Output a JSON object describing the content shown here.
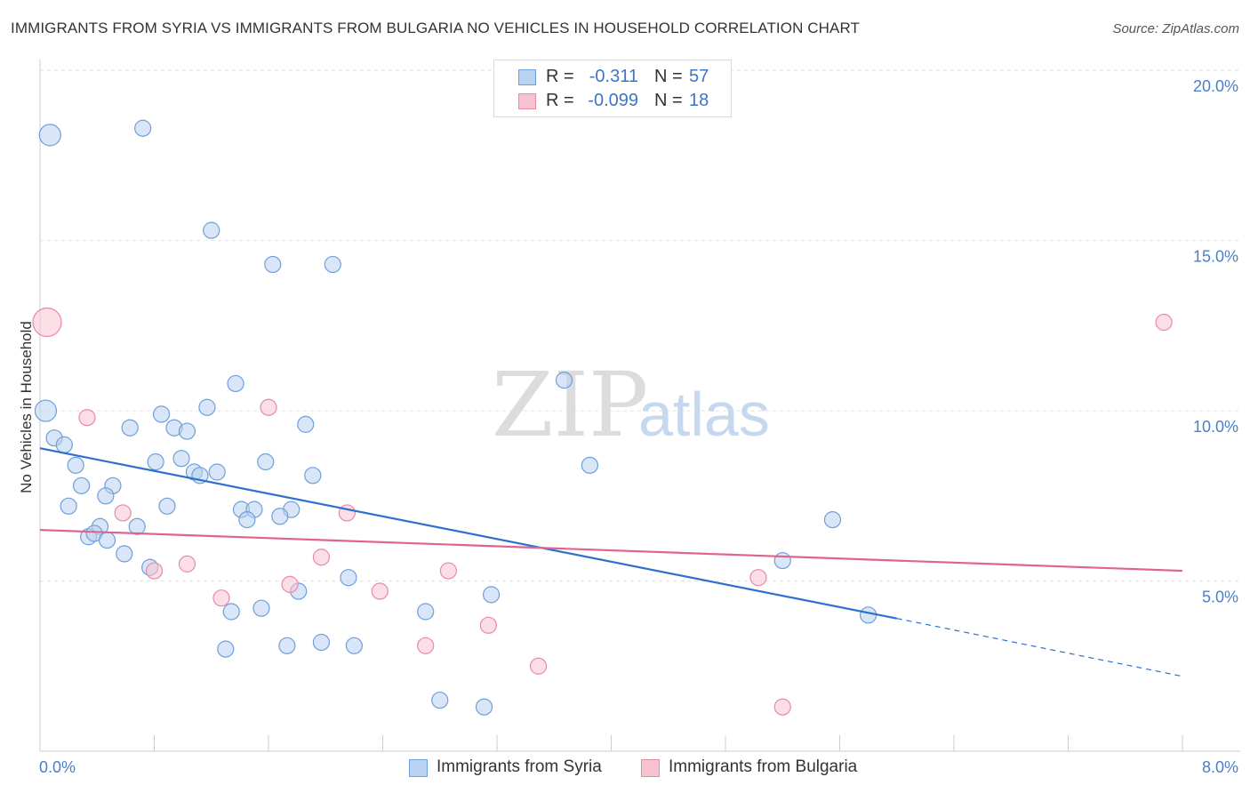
{
  "title": "IMMIGRANTS FROM SYRIA VS IMMIGRANTS FROM BULGARIA NO VEHICLES IN HOUSEHOLD CORRELATION CHART",
  "source": "Source: ZipAtlas.com",
  "watermark": {
    "zip": "ZIP",
    "atlas": "atlas"
  },
  "legend": {
    "syria": {
      "r_label": "R =",
      "r_value": "-0.311",
      "n_label": "N =",
      "n_value": "57"
    },
    "bulgaria": {
      "r_label": "R =",
      "r_value": "-0.099",
      "n_label": "N =",
      "n_value": "18"
    }
  },
  "colors": {
    "syria_fill": "#b8d2f1",
    "syria_stroke": "#6e9fd9",
    "syria_line": "#2f6fcf",
    "bulgaria_fill": "#f7c3d1",
    "bulgaria_stroke": "#e88aa6",
    "bulgaria_line": "#e0648e",
    "grid": "#e2e2e2",
    "tick_text": "#4a7fc9"
  },
  "chart_data": {
    "type": "scatter",
    "title": "IMMIGRANTS FROM SYRIA VS IMMIGRANTS FROM BULGARIA NO VEHICLES IN HOUSEHOLD CORRELATION CHART",
    "xlabel": "",
    "ylabel": "No Vehicles in Household",
    "xlim": [
      0,
      8
    ],
    "ylim": [
      0,
      20.5
    ],
    "x_tick_labels": [
      "0.0%",
      "8.0%"
    ],
    "y_ticks": [
      5,
      10,
      15,
      20
    ],
    "y_tick_labels": [
      "5.0%",
      "10.0%",
      "15.0%",
      "20.0%"
    ],
    "grid": true,
    "legend_position": "bottom",
    "series": [
      {
        "name": "Immigrants from Syria",
        "color": "#b8d2f1",
        "trend": {
          "x0": 0,
          "y0": 8.9,
          "x1": 6.0,
          "y1": 3.9,
          "dash_to_x": 8.0,
          "dash_to_y": 2.2
        },
        "points": [
          {
            "x": 0.07,
            "y": 18.1,
            "s": 12
          },
          {
            "x": 0.72,
            "y": 18.3,
            "s": 9
          },
          {
            "x": 1.2,
            "y": 15.3,
            "s": 9
          },
          {
            "x": 1.63,
            "y": 14.3,
            "s": 9
          },
          {
            "x": 2.05,
            "y": 14.3,
            "s": 9
          },
          {
            "x": 0.04,
            "y": 10.0,
            "s": 12
          },
          {
            "x": 3.67,
            "y": 10.9,
            "s": 9
          },
          {
            "x": 1.37,
            "y": 10.8,
            "s": 9
          },
          {
            "x": 1.17,
            "y": 10.1,
            "s": 9
          },
          {
            "x": 0.1,
            "y": 9.2,
            "s": 9
          },
          {
            "x": 0.17,
            "y": 9.0,
            "s": 9
          },
          {
            "x": 0.85,
            "y": 9.9,
            "s": 9
          },
          {
            "x": 0.94,
            "y": 9.5,
            "s": 9
          },
          {
            "x": 1.03,
            "y": 9.4,
            "s": 9
          },
          {
            "x": 0.63,
            "y": 9.5,
            "s": 9
          },
          {
            "x": 1.86,
            "y": 9.6,
            "s": 9
          },
          {
            "x": 0.25,
            "y": 8.4,
            "s": 9
          },
          {
            "x": 0.81,
            "y": 8.5,
            "s": 9
          },
          {
            "x": 0.99,
            "y": 8.6,
            "s": 9
          },
          {
            "x": 1.08,
            "y": 8.2,
            "s": 9
          },
          {
            "x": 1.12,
            "y": 8.1,
            "s": 9
          },
          {
            "x": 1.24,
            "y": 8.2,
            "s": 9
          },
          {
            "x": 1.58,
            "y": 8.5,
            "s": 9
          },
          {
            "x": 1.91,
            "y": 8.1,
            "s": 9
          },
          {
            "x": 3.85,
            "y": 8.4,
            "s": 9
          },
          {
            "x": 0.29,
            "y": 7.8,
            "s": 9
          },
          {
            "x": 0.51,
            "y": 7.8,
            "s": 9
          },
          {
            "x": 0.46,
            "y": 7.5,
            "s": 9
          },
          {
            "x": 0.2,
            "y": 7.2,
            "s": 9
          },
          {
            "x": 0.89,
            "y": 7.2,
            "s": 9
          },
          {
            "x": 1.41,
            "y": 7.1,
            "s": 9
          },
          {
            "x": 1.5,
            "y": 7.1,
            "s": 9
          },
          {
            "x": 1.76,
            "y": 7.1,
            "s": 9
          },
          {
            "x": 1.45,
            "y": 6.8,
            "s": 9
          },
          {
            "x": 1.68,
            "y": 6.9,
            "s": 9
          },
          {
            "x": 5.55,
            "y": 6.8,
            "s": 9
          },
          {
            "x": 0.42,
            "y": 6.6,
            "s": 9
          },
          {
            "x": 0.68,
            "y": 6.6,
            "s": 9
          },
          {
            "x": 0.34,
            "y": 6.3,
            "s": 9
          },
          {
            "x": 0.38,
            "y": 6.4,
            "s": 9
          },
          {
            "x": 0.47,
            "y": 6.2,
            "s": 9
          },
          {
            "x": 0.59,
            "y": 5.8,
            "s": 9
          },
          {
            "x": 0.77,
            "y": 5.4,
            "s": 9
          },
          {
            "x": 5.2,
            "y": 5.6,
            "s": 9
          },
          {
            "x": 2.16,
            "y": 5.1,
            "s": 9
          },
          {
            "x": 1.81,
            "y": 4.7,
            "s": 9
          },
          {
            "x": 3.16,
            "y": 4.6,
            "s": 9
          },
          {
            "x": 1.55,
            "y": 4.2,
            "s": 9
          },
          {
            "x": 1.34,
            "y": 4.1,
            "s": 9
          },
          {
            "x": 2.7,
            "y": 4.1,
            "s": 9
          },
          {
            "x": 5.8,
            "y": 4.0,
            "s": 9
          },
          {
            "x": 1.97,
            "y": 3.2,
            "s": 9
          },
          {
            "x": 1.3,
            "y": 3.0,
            "s": 9
          },
          {
            "x": 1.73,
            "y": 3.1,
            "s": 9
          },
          {
            "x": 2.2,
            "y": 3.1,
            "s": 9
          },
          {
            "x": 2.8,
            "y": 1.5,
            "s": 9
          },
          {
            "x": 3.11,
            "y": 1.3,
            "s": 9
          }
        ]
      },
      {
        "name": "Immigrants from Bulgaria",
        "color": "#f7c3d1",
        "trend": {
          "x0": 0,
          "y0": 6.5,
          "x1": 8.0,
          "y1": 5.3
        },
        "points": [
          {
            "x": 0.05,
            "y": 12.6,
            "s": 16
          },
          {
            "x": 7.87,
            "y": 12.6,
            "s": 9
          },
          {
            "x": 0.33,
            "y": 9.8,
            "s": 9
          },
          {
            "x": 1.6,
            "y": 10.1,
            "s": 9
          },
          {
            "x": 0.58,
            "y": 7.0,
            "s": 9
          },
          {
            "x": 2.15,
            "y": 7.0,
            "s": 9
          },
          {
            "x": 1.03,
            "y": 5.5,
            "s": 9
          },
          {
            "x": 0.8,
            "y": 5.3,
            "s": 9
          },
          {
            "x": 1.97,
            "y": 5.7,
            "s": 9
          },
          {
            "x": 2.86,
            "y": 5.3,
            "s": 9
          },
          {
            "x": 5.03,
            "y": 5.1,
            "s": 9
          },
          {
            "x": 1.75,
            "y": 4.9,
            "s": 9
          },
          {
            "x": 2.38,
            "y": 4.7,
            "s": 9
          },
          {
            "x": 1.27,
            "y": 4.5,
            "s": 9
          },
          {
            "x": 3.14,
            "y": 3.7,
            "s": 9
          },
          {
            "x": 2.7,
            "y": 3.1,
            "s": 9
          },
          {
            "x": 3.49,
            "y": 2.5,
            "s": 9
          },
          {
            "x": 5.2,
            "y": 1.3,
            "s": 9
          }
        ]
      }
    ]
  }
}
